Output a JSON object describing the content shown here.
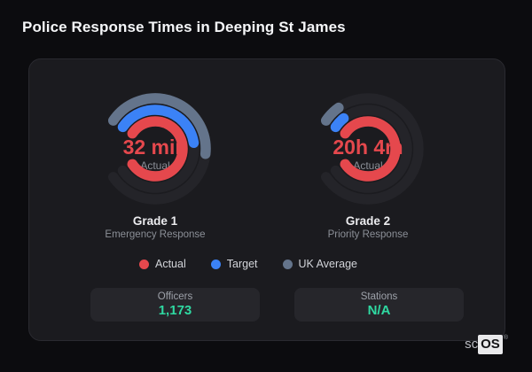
{
  "title": "Police Response Times in Deeping St James",
  "legend": {
    "position": "bottom-center",
    "items": [
      {
        "label": "Actual",
        "color": "#e5484d"
      },
      {
        "label": "Target",
        "color": "#3b82f6"
      },
      {
        "label": "UK Average",
        "color": "#64748b"
      }
    ]
  },
  "stats": [
    {
      "label": "Officers",
      "value": "1,173"
    },
    {
      "label": "Stations",
      "value": "N/A"
    }
  ],
  "brand": {
    "prefix": "sc",
    "boxed": "OS",
    "registered": "®"
  },
  "chart_data": [
    {
      "type": "radial-gauge",
      "name": "Grade 1",
      "sublabel": "Emergency Response",
      "center_value": "32 min",
      "center_value_color": "#e5484d",
      "center_label": "Actual",
      "center_label_color": "#8b8f97",
      "rings": [
        {
          "series": "UK Average",
          "color": "#64748b",
          "fill": 0.52
        },
        {
          "series": "Target",
          "color": "#3b82f6",
          "fill": 0.47
        },
        {
          "series": "Actual",
          "color": "#e5484d",
          "fill": 1.0
        }
      ],
      "layout": {
        "start_angle": 304,
        "max_sweep": 292,
        "radii": [
          57,
          44,
          31
        ],
        "thickness": 11.5,
        "track_color": "#242429"
      }
    },
    {
      "type": "radial-gauge",
      "name": "Grade 2",
      "sublabel": "Priority Response",
      "center_value": "20h 4m",
      "center_value_color": "#e5484d",
      "center_label": "Actual",
      "center_label_color": "#8b8f97",
      "rings": [
        {
          "series": "UK Average",
          "color": "#64748b",
          "fill": 0.07
        },
        {
          "series": "Target",
          "color": "#3b82f6",
          "fill": 0.06
        },
        {
          "series": "Actual",
          "color": "#e5484d",
          "fill": 1.0
        }
      ],
      "layout": {
        "start_angle": 304,
        "max_sweep": 292,
        "radii": [
          57,
          44,
          31
        ],
        "thickness": 11.5,
        "track_color": "#242429"
      }
    }
  ]
}
